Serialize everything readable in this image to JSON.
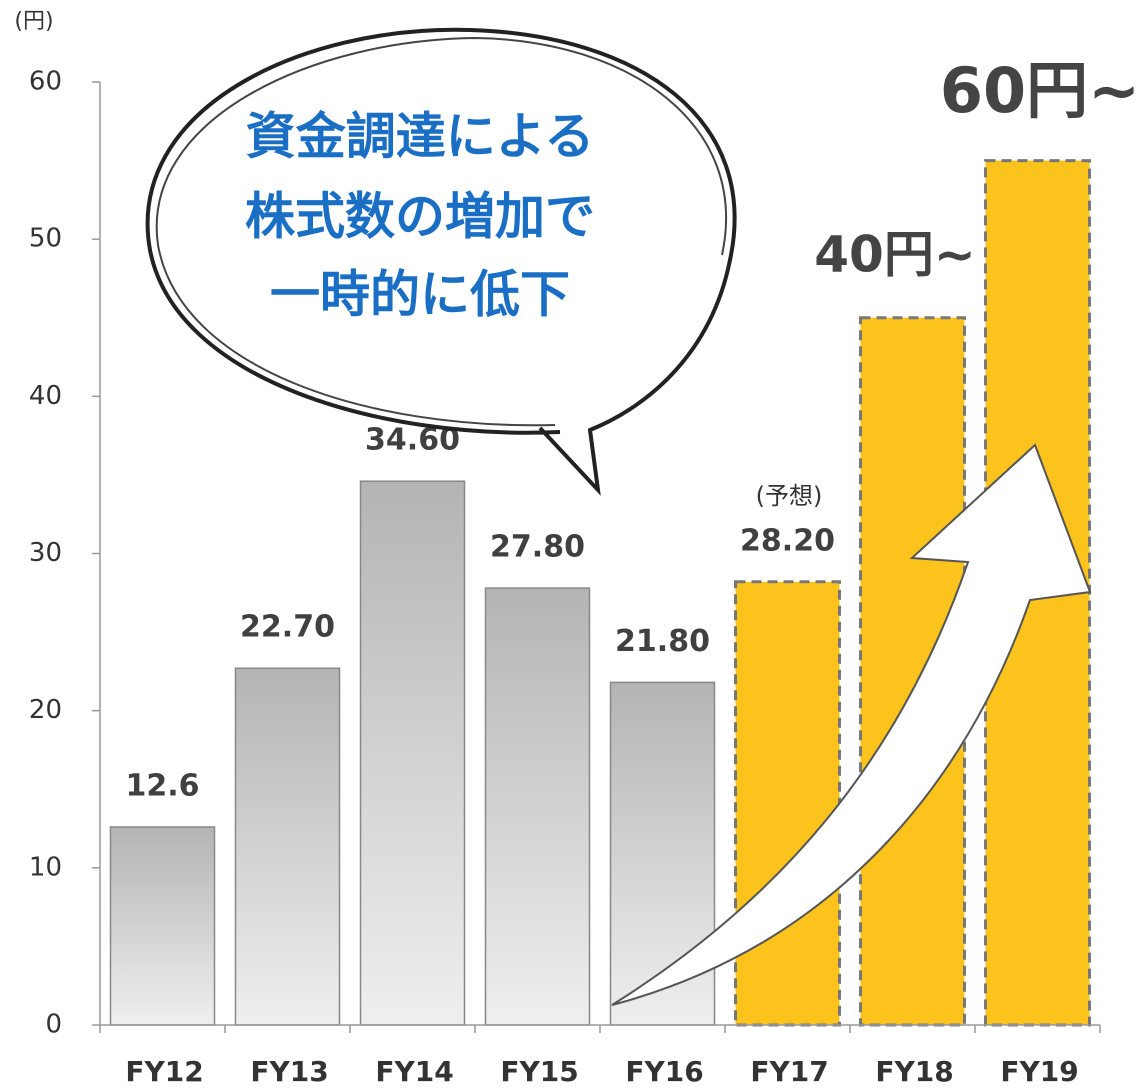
{
  "chart_data": {
    "type": "bar",
    "ylabel": "(円)",
    "categories": [
      "FY12",
      "FY13",
      "FY14",
      "FY15",
      "FY16",
      "FY17",
      "FY18",
      "FY19"
    ],
    "values": [
      12.6,
      22.7,
      34.6,
      27.8,
      21.8,
      28.2,
      45,
      55
    ],
    "value_labels": [
      "12.6",
      "22.70",
      "34.60",
      "27.80",
      "21.80",
      "28.20",
      null,
      null
    ],
    "colors": [
      "#b4b4b4",
      "#b4b4b4",
      "#b4b4b4",
      "#b4b4b4",
      "#b4b4b4",
      "#fbc31c",
      "#fbc31c",
      "#fbc31c"
    ],
    "bar_styles": [
      "solid",
      "solid",
      "solid",
      "solid",
      "solid",
      "dashed",
      "dashed",
      "dashed"
    ],
    "ylim": [
      0,
      60
    ],
    "yticks": [
      0,
      10,
      20,
      30,
      40,
      50,
      60
    ],
    "grid": false,
    "annotations": [
      {
        "text": "(予想)"
      },
      {
        "text": "40円~"
      },
      {
        "text": "60円~"
      },
      {
        "text": "資金調達による"
      },
      {
        "text": "株式数の増加で"
      },
      {
        "text": "一時的に低下"
      }
    ]
  }
}
